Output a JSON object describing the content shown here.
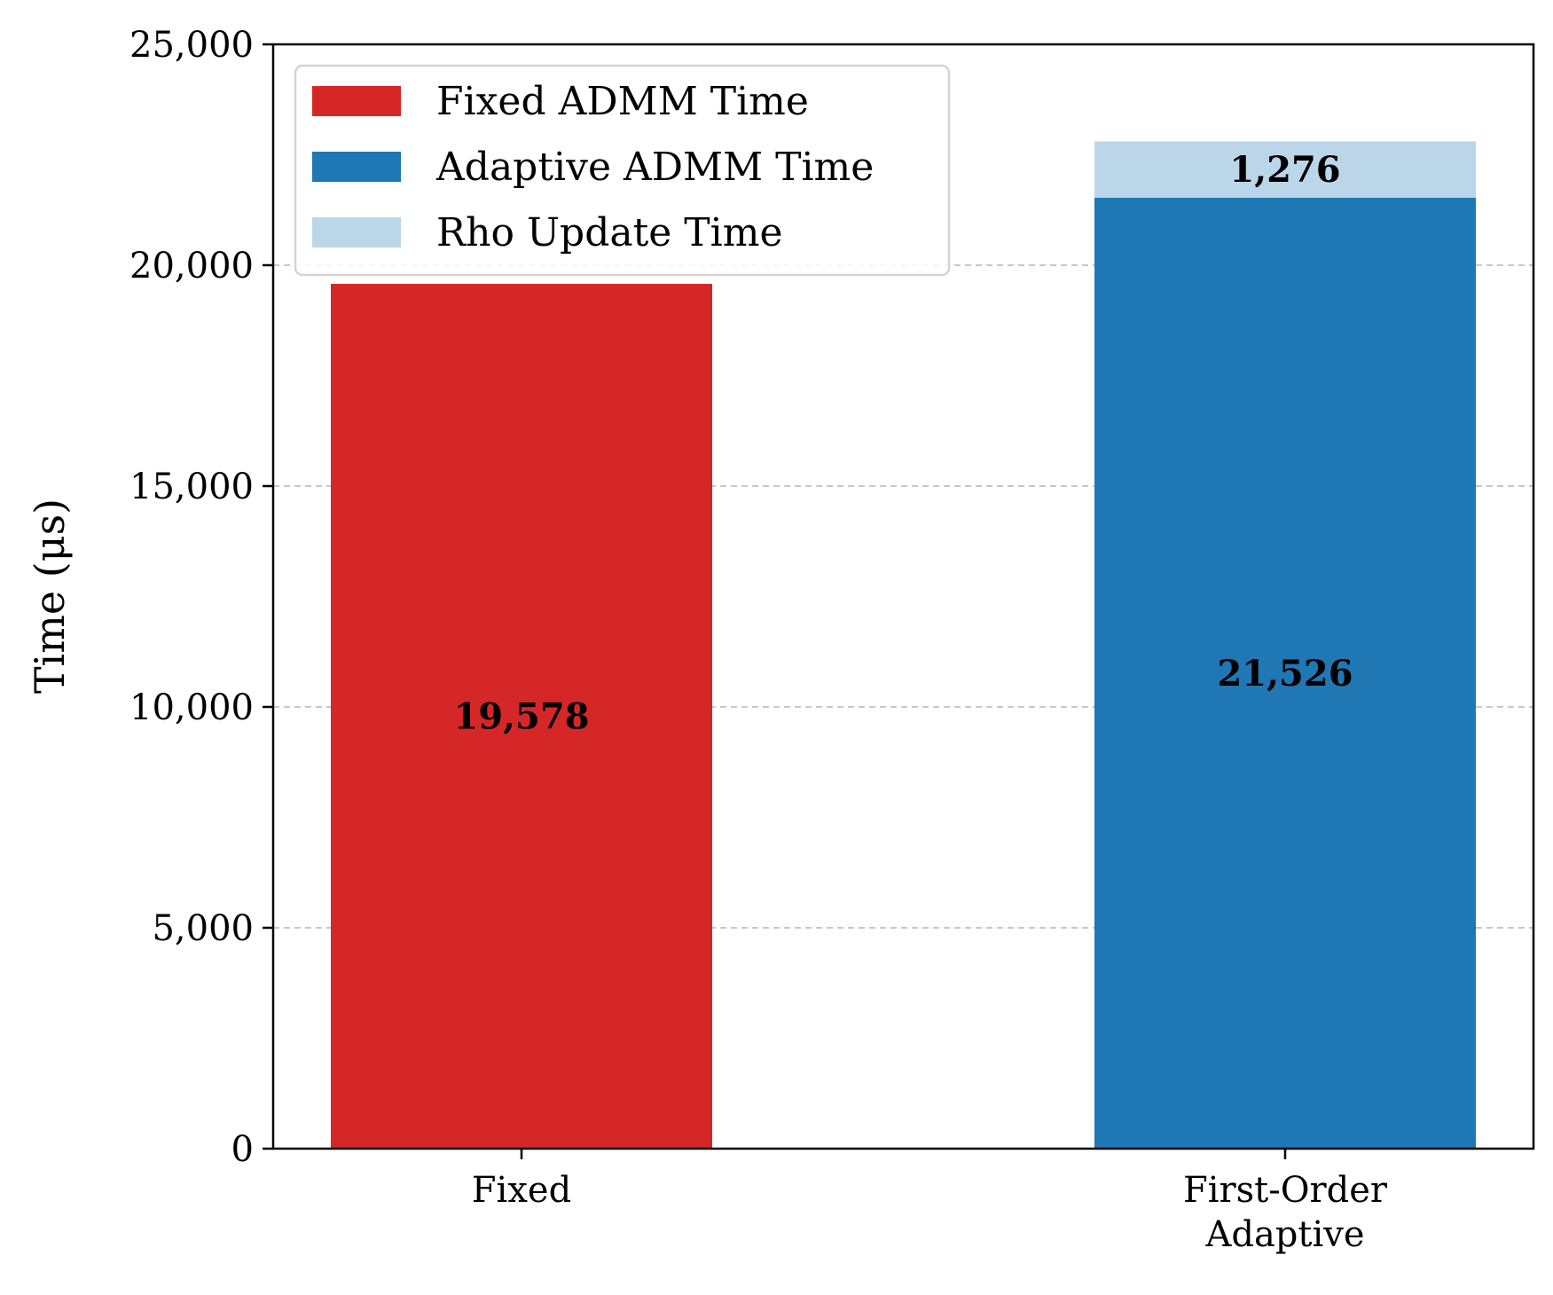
{
  "chart_data": {
    "type": "bar",
    "stacked": true,
    "categories": [
      [
        "Fixed"
      ],
      [
        "First-Order",
        "Adaptive"
      ]
    ],
    "series": [
      {
        "name": "Fixed ADMM Time",
        "color": "#d62728",
        "values": [
          19578,
          0
        ]
      },
      {
        "name": "Adaptive ADMM Time",
        "color": "#1f77b4",
        "values": [
          0,
          21526
        ]
      },
      {
        "name": "Rho Update Time",
        "color": "#bcd6e9",
        "values": [
          0,
          1276
        ]
      }
    ],
    "data_labels": [
      {
        "category": 0,
        "series": 0,
        "text": "19,578"
      },
      {
        "category": 1,
        "series": 1,
        "text": "21,526"
      },
      {
        "category": 1,
        "series": 2,
        "text": "1,276"
      }
    ],
    "title": "",
    "xlabel": "",
    "ylabel": "Time (μs)",
    "ylim": [
      0,
      25000
    ],
    "yticks": [
      0,
      5000,
      10000,
      15000,
      20000,
      25000
    ],
    "ytick_labels": [
      "0",
      "5,000",
      "10,000",
      "15,000",
      "20,000",
      "25,000"
    ],
    "grid": "y dashed",
    "legend_position": "top-left"
  }
}
